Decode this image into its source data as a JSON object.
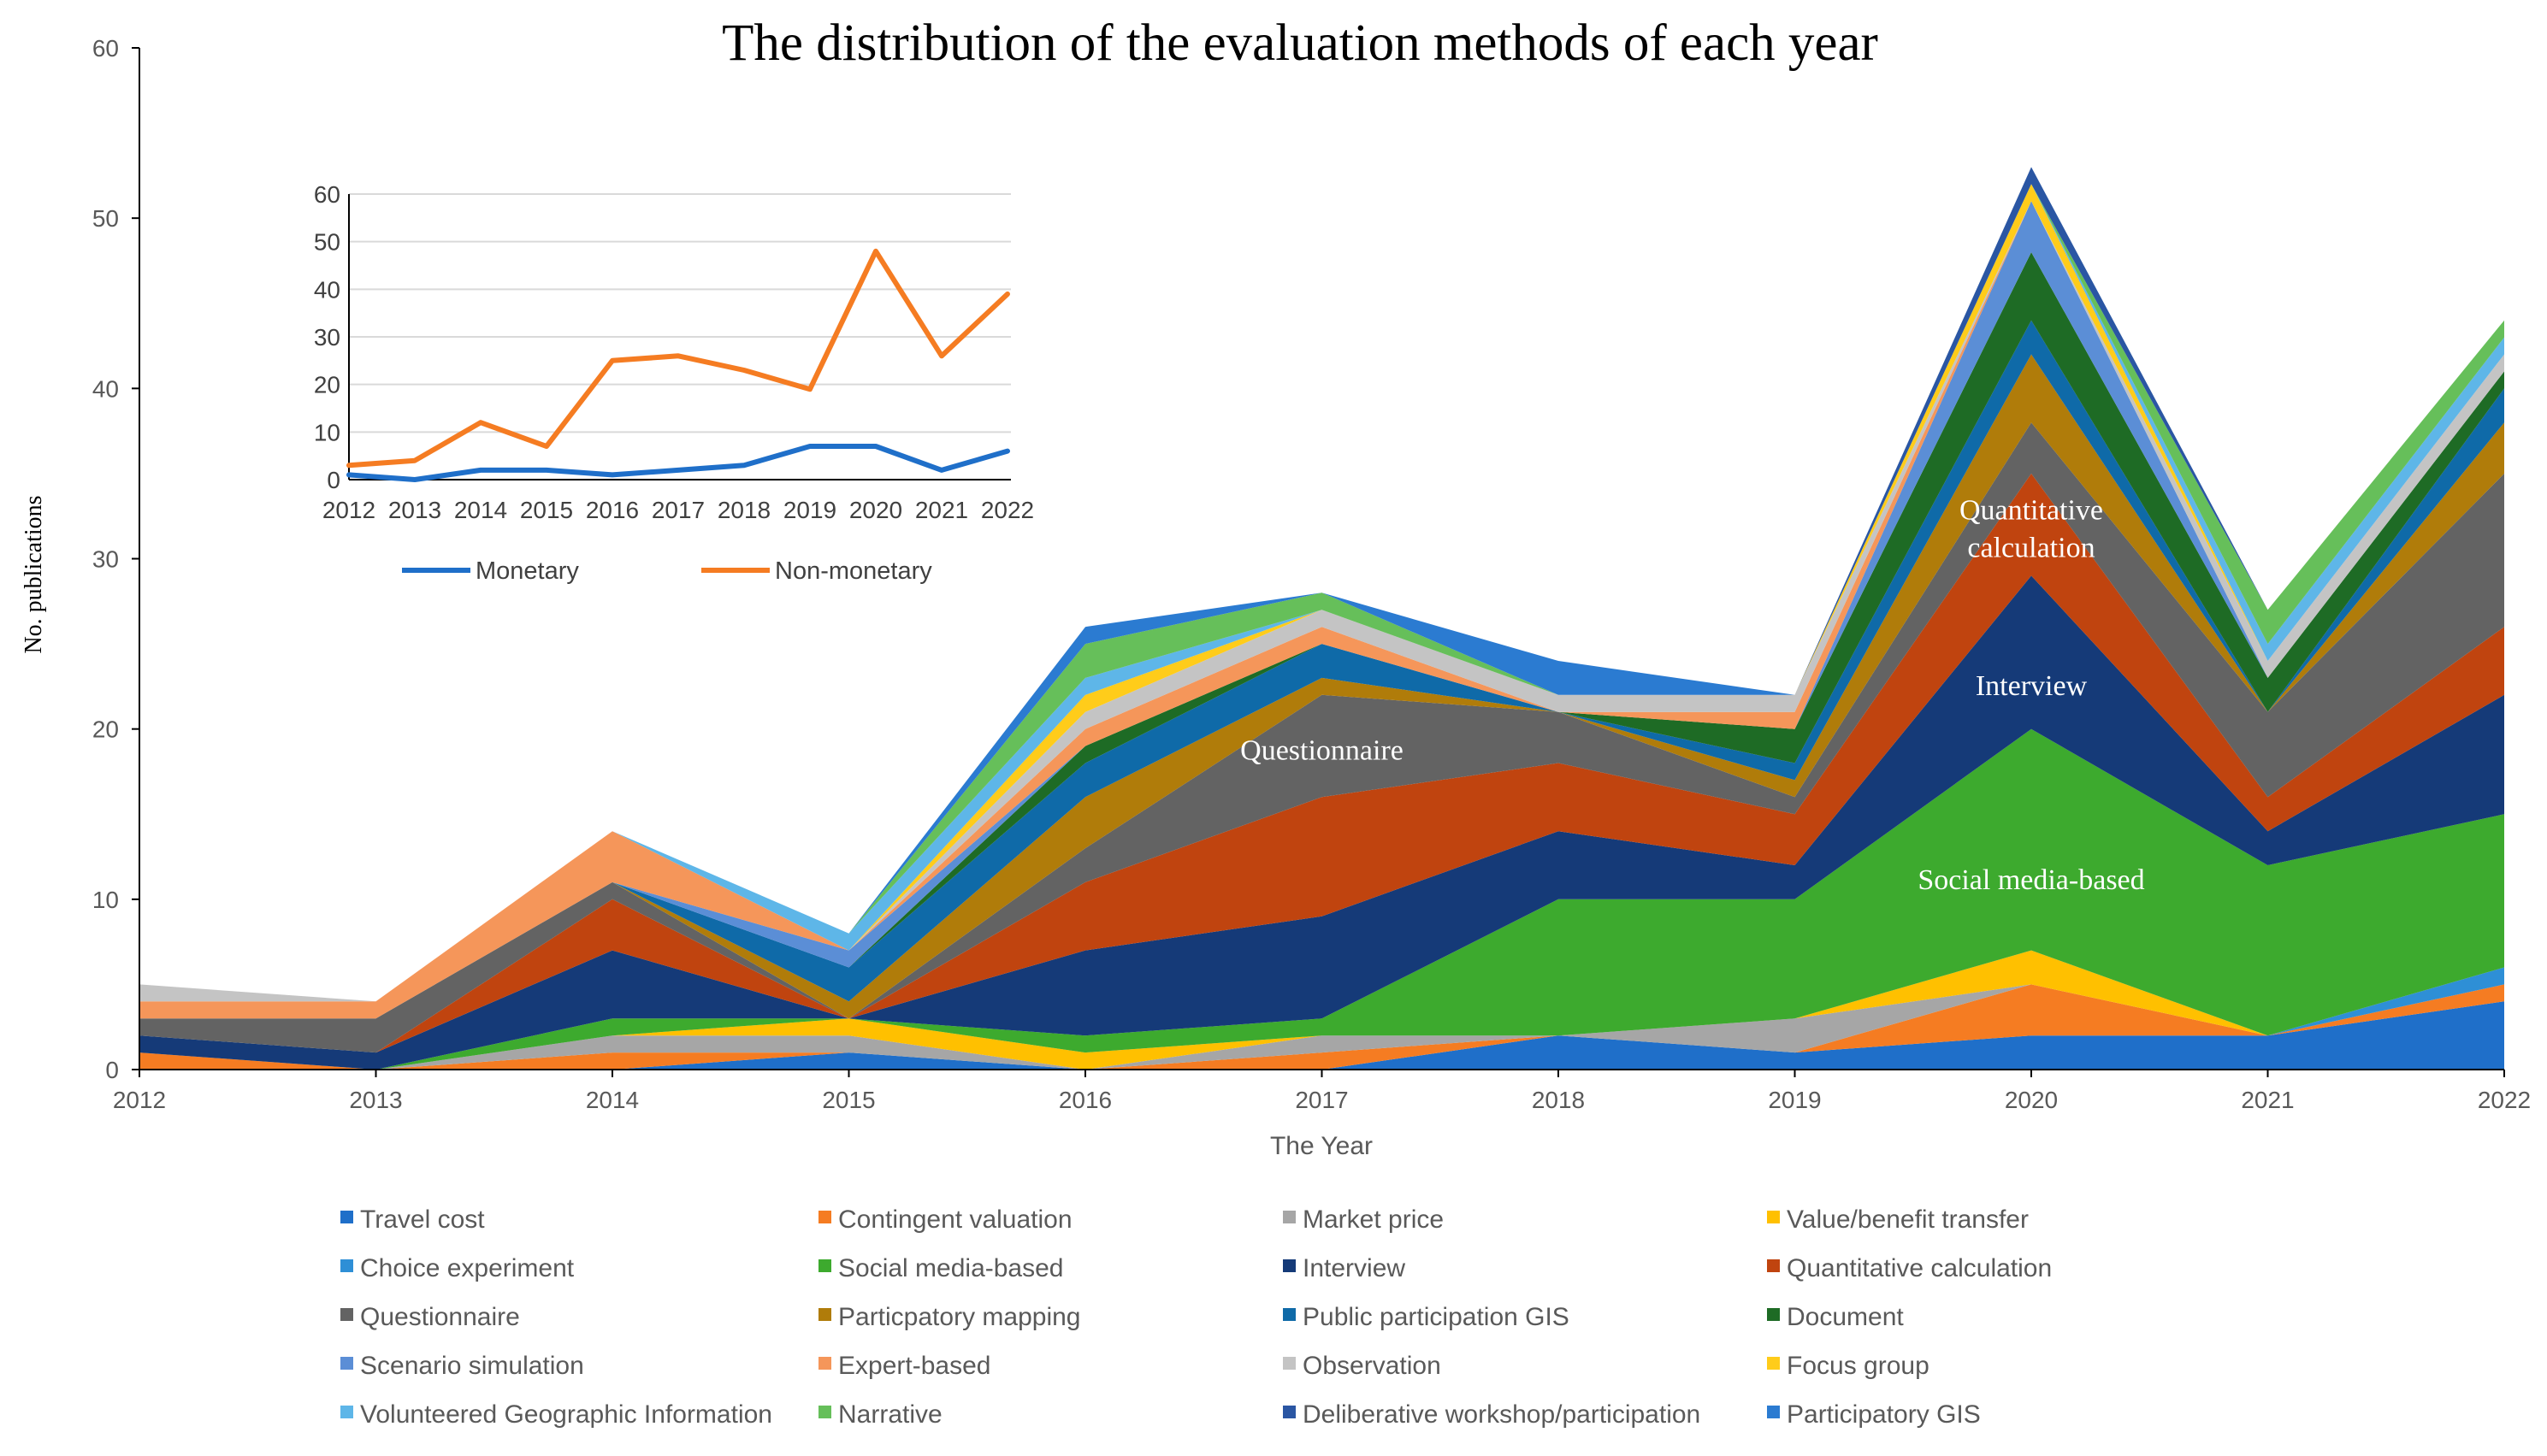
{
  "chart_data": [
    {
      "type": "area",
      "stacked": true,
      "title": "The distribution of the evaluation methods of each year",
      "xlabel": "The Year",
      "ylabel": "No. publications",
      "ylim": [
        0,
        60
      ],
      "yticks": [
        0,
        10,
        20,
        30,
        40,
        50,
        60
      ],
      "categories": [
        "2012",
        "2013",
        "2014",
        "2015",
        "2016",
        "2017",
        "2018",
        "2019",
        "2020",
        "2021",
        "2022"
      ],
      "legend_position": "bottom",
      "series": [
        {
          "name": "Travel cost",
          "color": "#1f6fc9",
          "values": [
            0,
            0,
            0,
            1,
            0,
            0,
            2,
            1,
            2,
            2,
            4
          ]
        },
        {
          "name": "Contingent valuation",
          "color": "#f57c22",
          "values": [
            1,
            0,
            1,
            0,
            0,
            1,
            0,
            0,
            3,
            0,
            1
          ]
        },
        {
          "name": "Market price",
          "color": "#a6a6a6",
          "values": [
            0,
            0,
            1,
            1,
            0,
            1,
            0,
            2,
            0,
            0,
            0
          ]
        },
        {
          "name": "Value/benefit transfer",
          "color": "#ffc000",
          "values": [
            0,
            0,
            0,
            1,
            1,
            0,
            0,
            0,
            2,
            0,
            0
          ]
        },
        {
          "name": "Choice experiment",
          "color": "#2e8fd6",
          "values": [
            0,
            0,
            0,
            0,
            0,
            0,
            0,
            0,
            0,
            0,
            1
          ]
        },
        {
          "name": "Social media-based",
          "color": "#3daa2e",
          "values": [
            0,
            0,
            1,
            0,
            1,
            1,
            8,
            7,
            13,
            10,
            9
          ]
        },
        {
          "name": "Interview",
          "color": "#153a78",
          "values": [
            1,
            1,
            4,
            0,
            5,
            6,
            4,
            2,
            9,
            2,
            7
          ]
        },
        {
          "name": "Quantitative calculation",
          "color": "#c0440f",
          "values": [
            0,
            0,
            3,
            0,
            4,
            7,
            4,
            3,
            6,
            2,
            4
          ]
        },
        {
          "name": "Questionnaire",
          "color": "#636363",
          "values": [
            1,
            2,
            1,
            0,
            2,
            6,
            3,
            1,
            3,
            5,
            9
          ]
        },
        {
          "name": "Particpatory mapping",
          "color": "#b07c0a",
          "values": [
            0,
            0,
            0,
            1,
            3,
            1,
            0,
            1,
            4,
            0,
            3
          ]
        },
        {
          "name": "Public participation GIS",
          "color": "#0f6aa8",
          "values": [
            0,
            0,
            0,
            2,
            2,
            2,
            0,
            1,
            2,
            0,
            2
          ]
        },
        {
          "name": "Document",
          "color": "#1e6b25",
          "values": [
            0,
            0,
            0,
            0,
            1,
            0,
            0,
            2,
            4,
            2,
            1
          ]
        },
        {
          "name": "Scenario simulation",
          "color": "#5b8ed6",
          "values": [
            0,
            0,
            0,
            1,
            0,
            0,
            0,
            0,
            3,
            0,
            0
          ]
        },
        {
          "name": "Expert-based",
          "color": "#f5965a",
          "values": [
            1,
            1,
            3,
            0,
            1,
            1,
            0,
            1,
            0,
            0,
            0
          ]
        },
        {
          "name": "Observation",
          "color": "#c4c4c4",
          "values": [
            1,
            0,
            0,
            0,
            1,
            1,
            1,
            1,
            0,
            1,
            1
          ]
        },
        {
          "name": "Focus group",
          "color": "#ffcc1a",
          "values": [
            0,
            0,
            0,
            0,
            1,
            0,
            0,
            0,
            1,
            0,
            0
          ]
        },
        {
          "name": "Volunteered Geographic Information",
          "color": "#5eb6e8",
          "values": [
            0,
            0,
            0,
            1,
            1,
            0,
            0,
            0,
            0,
            1,
            1
          ]
        },
        {
          "name": "Narrative",
          "color": "#66bf5a",
          "values": [
            0,
            0,
            0,
            0,
            2,
            1,
            0,
            0,
            0,
            2,
            1
          ]
        },
        {
          "name": "Deliberative workshop/participation",
          "color": "#2a56a3",
          "values": [
            0,
            0,
            0,
            0,
            0,
            0,
            0,
            0,
            1,
            0,
            0
          ]
        },
        {
          "name": "Participatory GIS",
          "color": "#2b7bd1",
          "values": [
            0,
            0,
            0,
            0,
            1,
            0,
            2,
            0,
            0,
            0,
            0
          ]
        }
      ],
      "annotations": [
        {
          "text": "Questionnaire",
          "x": "2017",
          "y": 18.8
        },
        {
          "text": "Interview",
          "x": "2020",
          "y": 22.6
        },
        {
          "text": "Quantitative",
          "x": "2020",
          "y": 32.9
        },
        {
          "text": "calculation",
          "x": "2020",
          "y": 30.7
        },
        {
          "text": "Social media-based",
          "x": "2020",
          "y": 11.2
        }
      ]
    },
    {
      "type": "line",
      "categories": [
        "2012",
        "2013",
        "2014",
        "2015",
        "2016",
        "2017",
        "2018",
        "2019",
        "2020",
        "2021",
        "2022"
      ],
      "ylim": [
        0,
        60
      ],
      "yticks": [
        0,
        10,
        20,
        30,
        40,
        50,
        60
      ],
      "legend_position": "bottom",
      "series": [
        {
          "name": "Monetary",
          "color": "#1f6fc9",
          "values": [
            1,
            0,
            2,
            2,
            1,
            2,
            3,
            7,
            7,
            2,
            6
          ]
        },
        {
          "name": "Non-monetary",
          "color": "#f57c22",
          "values": [
            3,
            4,
            12,
            7,
            25,
            26,
            23,
            19,
            48,
            26,
            39
          ]
        }
      ]
    }
  ]
}
